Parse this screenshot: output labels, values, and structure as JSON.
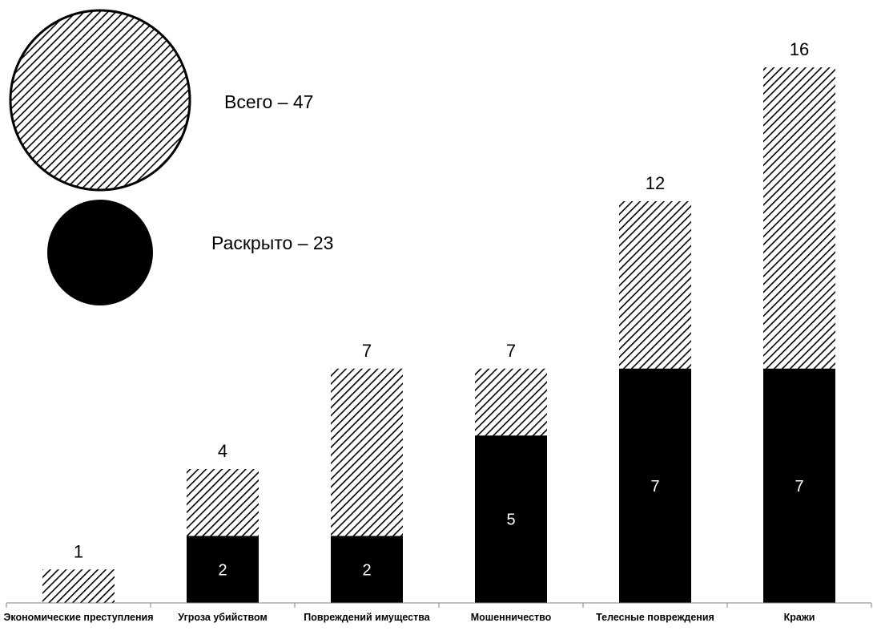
{
  "chart_data": {
    "type": "bar",
    "stacked": false,
    "categories": [
      "Экономические преступления",
      "Угроза убийством",
      "Повреждений имущества",
      "Мошенничество",
      "Телесные повреждения",
      "Кражи"
    ],
    "series": [
      {
        "name": "Всего",
        "values": [
          1,
          4,
          7,
          7,
          12,
          16
        ],
        "pattern": "diagonal-hatch",
        "color": "#000000"
      },
      {
        "name": "Раскрыто",
        "values": [
          0,
          2,
          2,
          5,
          7,
          7
        ],
        "color": "#000000"
      }
    ],
    "ylim": [
      0,
      16
    ],
    "grid": false,
    "legend": {
      "position": "top-left",
      "items": [
        {
          "text": "Всего – 47",
          "symbol": "hatched-circle"
        },
        {
          "text": "Раскрыто – 23",
          "symbol": "solid-circle"
        }
      ]
    }
  }
}
